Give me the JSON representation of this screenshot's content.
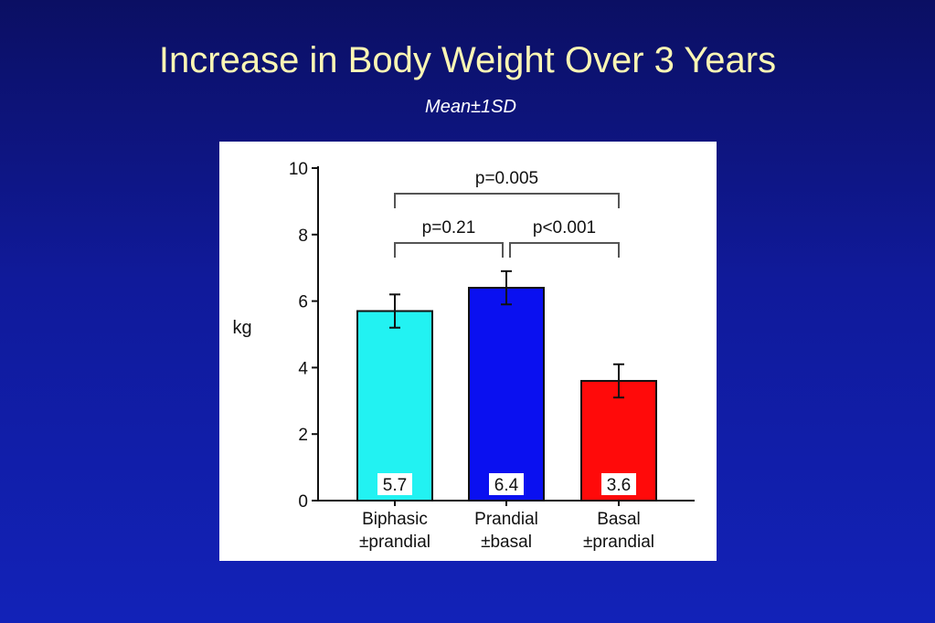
{
  "slide": {
    "title": "Increase in Body Weight Over 3 Years",
    "subtitle": "Mean±1SD"
  },
  "chart_data": {
    "type": "bar",
    "ylabel": "kg",
    "ylim": [
      0,
      10
    ],
    "yticks": [
      0,
      2,
      4,
      6,
      8,
      10
    ],
    "categories": [
      [
        "Biphasic",
        "±prandial"
      ],
      [
        "Prandial",
        "±basal"
      ],
      [
        "Basal",
        "±prandial"
      ]
    ],
    "values": [
      5.7,
      6.4,
      3.6
    ],
    "value_labels": [
      "5.7",
      "6.4",
      "3.6"
    ],
    "error": [
      0.5,
      0.5,
      0.5
    ],
    "colors": [
      "#22f2f2",
      "#0a10f0",
      "#ff0a0a"
    ],
    "comparisons": [
      {
        "from": 0,
        "to": 2,
        "label": "p=0.005",
        "level": 2
      },
      {
        "from": 0,
        "to": 1,
        "label": "p=0.21",
        "level": 1
      },
      {
        "from": 1,
        "to": 2,
        "label": "p<0.001",
        "level": 1
      }
    ],
    "grid": false,
    "legend": "none"
  }
}
